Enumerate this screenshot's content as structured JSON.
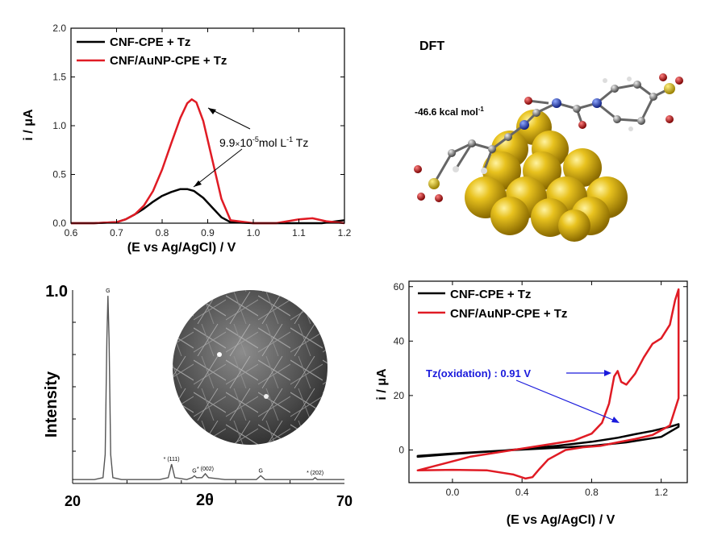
{
  "chart_data": [
    {
      "id": "dpv",
      "type": "line",
      "xlabel": "(E vs Ag/AgCl) / V",
      "ylabel": "i / μA",
      "xlim": [
        0.6,
        1.2
      ],
      "ylim": [
        0,
        2.0
      ],
      "xticks": [
        "0.6",
        "0.7",
        "0.8",
        "0.9",
        "1.0",
        "1.1",
        "1.2"
      ],
      "yticks": [
        "0.0",
        "0.5",
        "1.0",
        "1.5",
        "2.0"
      ],
      "legend": "top-left",
      "annotation": {
        "prefix": "9.9",
        "times": "×",
        "mantissa": "10",
        "exp1": "-5",
        "mid": "mol L",
        "exp2": "-1",
        "suffix": " Tz"
      },
      "series": [
        {
          "name": "CNF-CPE + Tz",
          "color": "#000000",
          "x": [
            0.6,
            0.65,
            0.7,
            0.72,
            0.74,
            0.76,
            0.78,
            0.8,
            0.82,
            0.84,
            0.855,
            0.87,
            0.89,
            0.91,
            0.93,
            0.95,
            1.0,
            1.1,
            1.15,
            1.2
          ],
          "y": [
            0.0,
            0.0,
            0.01,
            0.04,
            0.09,
            0.15,
            0.22,
            0.28,
            0.32,
            0.35,
            0.35,
            0.33,
            0.26,
            0.16,
            0.06,
            0.01,
            0.0,
            0.0,
            0.0,
            0.03
          ]
        },
        {
          "name": "CNF/AuNP-CPE + Tz",
          "color": "#e01b24",
          "x": [
            0.6,
            0.65,
            0.7,
            0.72,
            0.74,
            0.76,
            0.78,
            0.8,
            0.82,
            0.84,
            0.855,
            0.865,
            0.875,
            0.89,
            0.91,
            0.93,
            0.95,
            1.0,
            1.05,
            1.1,
            1.13,
            1.16,
            1.2
          ],
          "y": [
            0.0,
            0.0,
            0.01,
            0.04,
            0.09,
            0.18,
            0.33,
            0.55,
            0.82,
            1.08,
            1.23,
            1.27,
            1.24,
            1.05,
            0.65,
            0.25,
            0.03,
            0.0,
            0.0,
            0.04,
            0.05,
            0.02,
            0.0
          ]
        }
      ]
    },
    {
      "id": "dft",
      "type": "other",
      "title": "DFT",
      "energy_label": "-46.6 kcal mol",
      "energy_exp": "-1"
    },
    {
      "id": "xrd",
      "type": "line",
      "xlabel": "2θ",
      "ylabel": "Intensity",
      "xlim": [
        20,
        70
      ],
      "yticks": [
        "1.0"
      ],
      "xticks": [
        "20",
        "70"
      ],
      "peak_labels": [
        {
          "x": 26.5,
          "label": "G"
        },
        {
          "x": 38.2,
          "label": "* (111)"
        },
        {
          "x": 42.4,
          "label": "G"
        },
        {
          "x": 44.4,
          "label": "* (002)"
        },
        {
          "x": 54.6,
          "label": "G"
        },
        {
          "x": 64.6,
          "label": "* (202)"
        }
      ],
      "series": [
        {
          "name": "",
          "color": "#555555",
          "x": [
            20,
            24,
            25.6,
            26.0,
            26.3,
            26.5,
            26.7,
            27.0,
            27.4,
            29,
            33,
            36,
            37.6,
            38.2,
            38.8,
            41,
            42.0,
            42.4,
            42.8,
            43.8,
            44.4,
            45.0,
            48,
            53.8,
            54.6,
            55.4,
            60,
            64.2,
            64.6,
            65.0,
            70
          ],
          "y": [
            0.02,
            0.02,
            0.03,
            0.15,
            0.75,
            0.97,
            0.75,
            0.15,
            0.03,
            0.02,
            0.02,
            0.02,
            0.03,
            0.1,
            0.03,
            0.02,
            0.03,
            0.04,
            0.03,
            0.03,
            0.05,
            0.03,
            0.02,
            0.02,
            0.04,
            0.02,
            0.02,
            0.02,
            0.03,
            0.02,
            0.02
          ]
        }
      ]
    },
    {
      "id": "cv",
      "type": "line",
      "xlabel": "(E vs Ag/AgCl) / V",
      "ylabel": "i / μA",
      "xlim": [
        -0.25,
        1.35
      ],
      "ylim": [
        -12,
        62
      ],
      "xticks": [
        "0.0",
        "0.4",
        "0.8",
        "1.2"
      ],
      "yticks": [
        "0",
        "20",
        "40",
        "60"
      ],
      "legend": "top-left",
      "annotation": "Tz(oxidation) : 0.91 V",
      "series": [
        {
          "name": "CNF-CPE + Tz",
          "color": "#000000",
          "x": [
            -0.2,
            0.0,
            0.3,
            0.6,
            0.8,
            0.95,
            1.05,
            1.15,
            1.25,
            1.3,
            1.3,
            1.2,
            1.0,
            0.8,
            0.6,
            0.3,
            0.0,
            -0.2
          ],
          "y": [
            -2.5,
            -1.5,
            -0.2,
            1.5,
            3.0,
            4.5,
            5.8,
            7.0,
            8.5,
            9.5,
            8.5,
            4.8,
            2.8,
            1.5,
            0.8,
            -0.2,
            -1.3,
            -2.2
          ]
        },
        {
          "name": "CNF/AuNP-CPE + Tz",
          "color": "#e01b24",
          "x": [
            -0.2,
            -0.05,
            0.1,
            0.3,
            0.5,
            0.7,
            0.8,
            0.86,
            0.9,
            0.93,
            0.95,
            0.97,
            1.0,
            1.05,
            1.1,
            1.15,
            1.2,
            1.25,
            1.28,
            1.3,
            1.3,
            1.25,
            1.15,
            1.05,
            0.95,
            0.85,
            0.75,
            0.65,
            0.55,
            0.5,
            0.46,
            0.42,
            0.35,
            0.2,
            0.0,
            -0.2
          ],
          "y": [
            -7.5,
            -5.0,
            -2.5,
            -0.5,
            1.5,
            3.5,
            6.0,
            10.0,
            17.0,
            27.0,
            29.0,
            25.0,
            24.0,
            28.0,
            34.0,
            39.0,
            41.0,
            46.0,
            55.0,
            59.0,
            19.0,
            9.0,
            5.5,
            4.0,
            2.8,
            1.5,
            1.0,
            0.0,
            -3.5,
            -7.0,
            -10.0,
            -10.5,
            -9.0,
            -7.5,
            -7.3,
            -7.5
          ]
        }
      ]
    }
  ]
}
